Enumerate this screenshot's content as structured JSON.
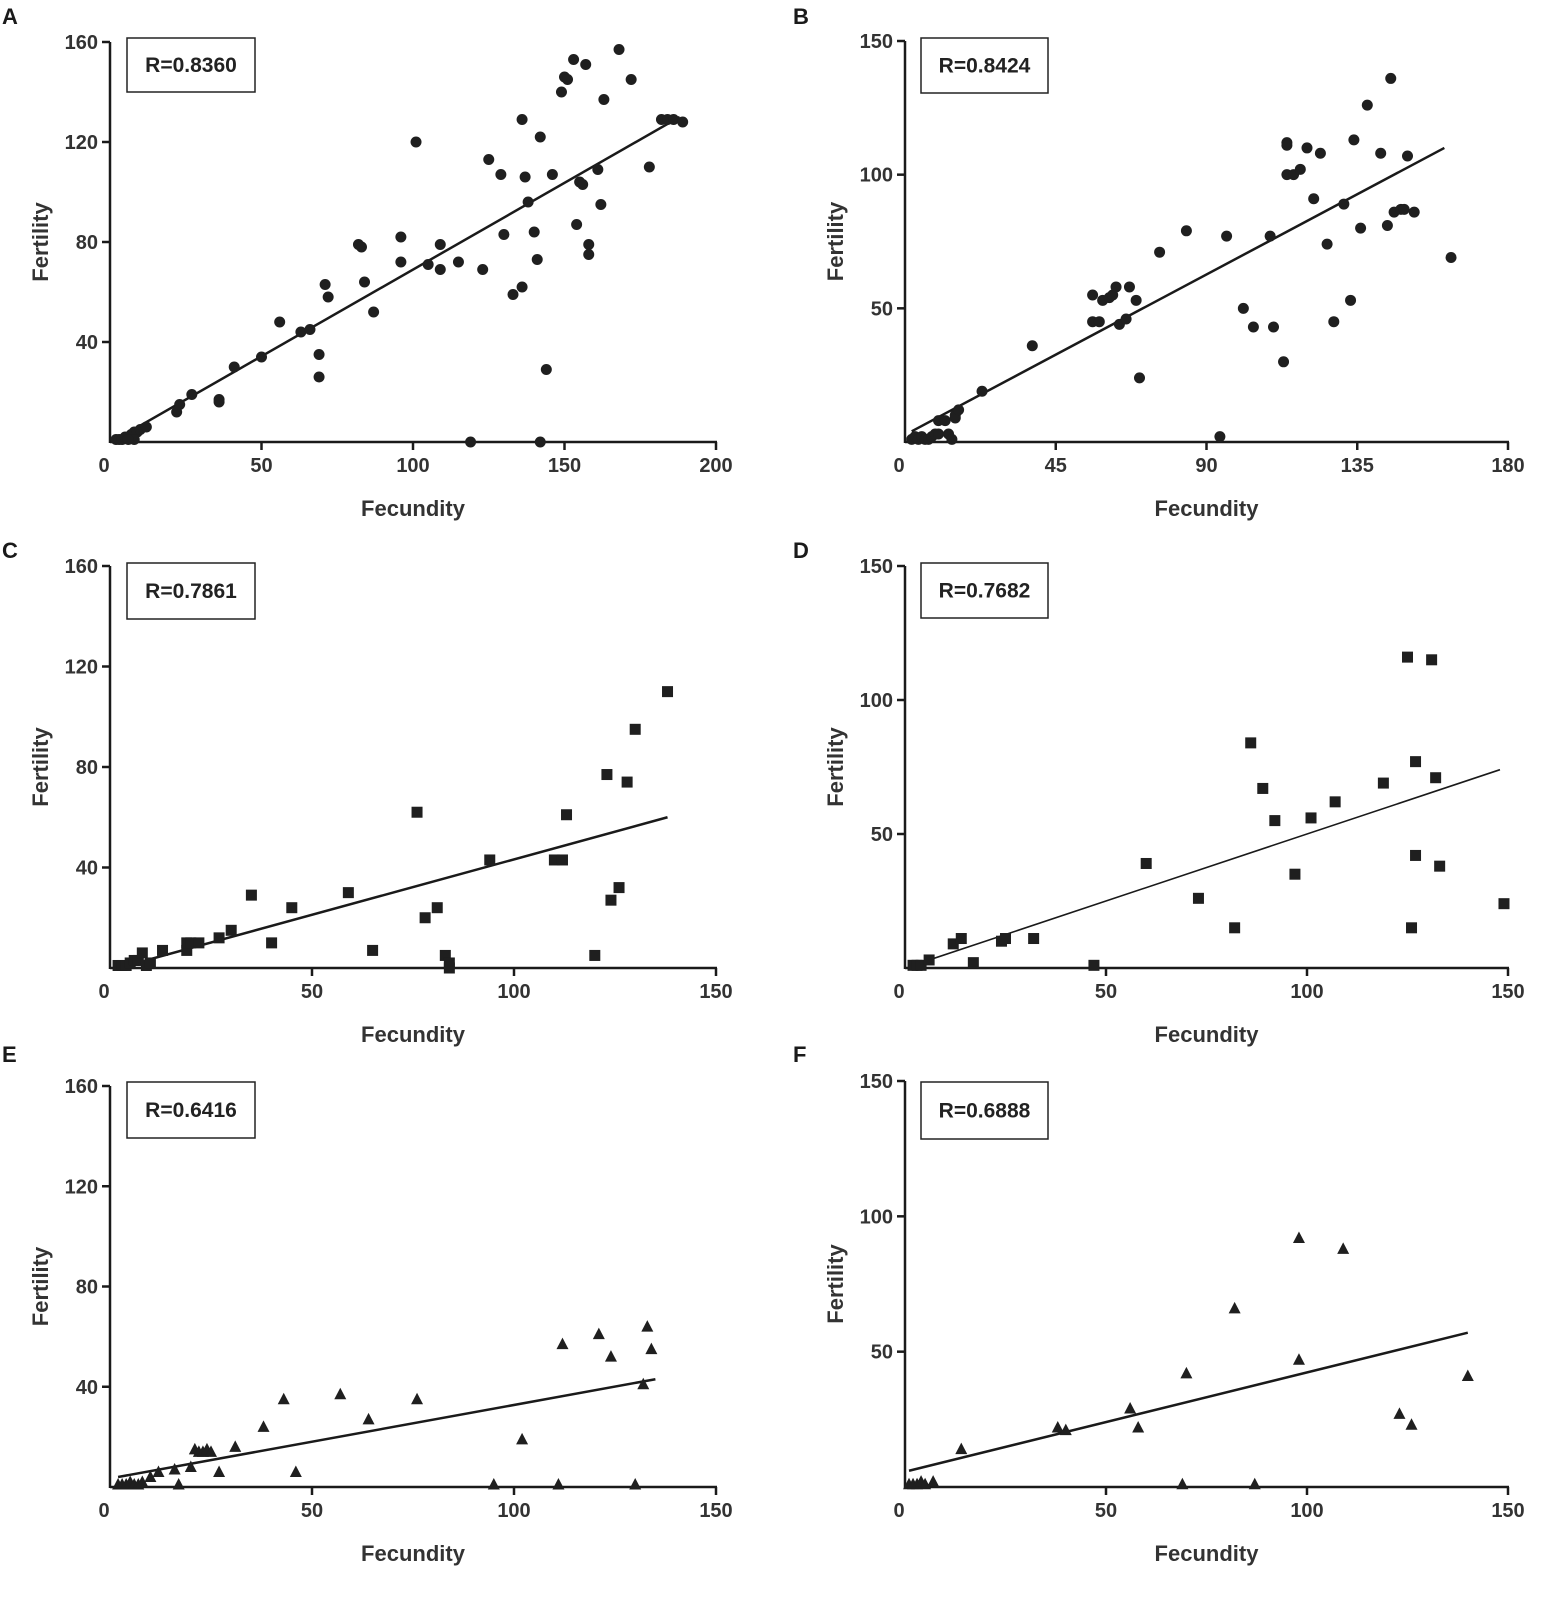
{
  "chart_data": [
    {
      "panel": "A",
      "type": "scatter",
      "marker": "circle",
      "xlabel": "Fecundity",
      "ylabel": "Fertility",
      "annotation": "R=0.8360",
      "xlim": [
        0,
        200
      ],
      "ylim": [
        0,
        160
      ],
      "xticks": [
        0,
        50,
        100,
        150,
        200
      ],
      "xtick_labels": [
        "0",
        "50",
        "100",
        "150",
        "200"
      ],
      "yticks": [
        40,
        80,
        120,
        160
      ],
      "ytick_labels": [
        "40",
        "80",
        "120",
        "160"
      ],
      "fit": {
        "x": [
          2,
          188
        ],
        "y": [
          1,
          130
        ]
      },
      "x": [
        2,
        3,
        4,
        5,
        6,
        7,
        8,
        9,
        10,
        8,
        6,
        12,
        22,
        23,
        27,
        36,
        36,
        41,
        50,
        56,
        63,
        66,
        69,
        69,
        71,
        72,
        82,
        83,
        84,
        87,
        96,
        96,
        101,
        105,
        109,
        109,
        115,
        123,
        125,
        129,
        130,
        133,
        136,
        136,
        137,
        138,
        140,
        141,
        142,
        142,
        144,
        146,
        149,
        150,
        151,
        153,
        154,
        155,
        156,
        157,
        158,
        158,
        161,
        162,
        163,
        168,
        172,
        178,
        182,
        184,
        186,
        189,
        119
      ],
      "y": [
        1,
        1,
        1,
        2,
        2,
        3,
        4,
        4,
        5,
        1,
        1,
        6,
        12,
        15,
        19,
        16,
        17,
        30,
        34,
        48,
        44,
        45,
        35,
        26,
        63,
        58,
        79,
        78,
        64,
        52,
        82,
        72,
        120,
        71,
        79,
        69,
        72,
        69,
        113,
        107,
        83,
        59,
        62,
        129,
        106,
        96,
        84,
        73,
        122,
        0,
        29,
        107,
        140,
        146,
        145,
        153,
        87,
        104,
        103,
        151,
        75,
        79,
        109,
        95,
        137,
        157,
        145,
        110,
        129,
        129,
        129,
        128,
        0
      ]
    },
    {
      "panel": "B",
      "type": "scatter",
      "marker": "circle",
      "xlabel": "Fecundity",
      "ylabel": "Fertility",
      "annotation": "R=0.8424",
      "xlim": [
        0,
        180
      ],
      "ylim": [
        0,
        150
      ],
      "xticks": [
        0,
        45,
        90,
        135,
        180
      ],
      "xtick_labels": [
        "0",
        "45",
        "90",
        "135",
        "180"
      ],
      "yticks": [
        50,
        100,
        150
      ],
      "ytick_labels": [
        "50",
        "100",
        "150"
      ],
      "fit": {
        "x": [
          2,
          161
        ],
        "y": [
          4,
          110
        ]
      },
      "x": [
        2,
        3,
        4,
        5,
        6,
        7,
        8,
        9,
        10,
        10,
        12,
        13,
        14,
        15,
        15,
        16,
        23,
        38,
        56,
        56,
        58,
        59,
        61,
        62,
        63,
        64,
        66,
        67,
        69,
        70,
        76,
        84,
        94,
        96,
        101,
        104,
        109,
        110,
        113,
        114,
        114,
        114,
        116,
        118,
        120,
        122,
        124,
        126,
        128,
        131,
        133,
        134,
        136,
        138,
        142,
        144,
        145,
        146,
        148,
        149,
        150,
        152,
        163
      ],
      "y": [
        1,
        2,
        1,
        2,
        1,
        1,
        2,
        3,
        8,
        3,
        8,
        3,
        1,
        9,
        10,
        12,
        19,
        36,
        55,
        45,
        45,
        53,
        54,
        55,
        58,
        44,
        46,
        58,
        53,
        24,
        71,
        79,
        2,
        77,
        50,
        43,
        77,
        43,
        30,
        100,
        112,
        111,
        100,
        102,
        110,
        91,
        108,
        74,
        45,
        89,
        53,
        113,
        80,
        126,
        108,
        81,
        136,
        86,
        87,
        87,
        107,
        86,
        69
      ]
    },
    {
      "panel": "C",
      "type": "scatter",
      "marker": "square",
      "xlabel": "Fecundity",
      "ylabel": "Fertility",
      "annotation": "R=0.7861",
      "xlim": [
        0,
        150
      ],
      "ylim": [
        0,
        160
      ],
      "xticks": [
        0,
        50,
        100,
        150
      ],
      "xtick_labels": [
        "0",
        "50",
        "100",
        "150"
      ],
      "yticks": [
        40,
        80,
        120,
        160
      ],
      "ytick_labels": [
        "40",
        "80",
        "120",
        "160"
      ],
      "fit": {
        "x": [
          2,
          138
        ],
        "y": [
          0,
          60
        ]
      },
      "x": [
        2,
        3,
        4,
        5,
        6,
        7,
        8,
        9,
        10,
        13,
        19,
        19,
        20,
        22,
        27,
        30,
        35,
        40,
        45,
        59,
        65,
        76,
        78,
        81,
        83,
        84,
        84,
        94,
        110,
        112,
        113,
        120,
        123,
        124,
        126,
        128,
        130,
        138
      ],
      "y": [
        1,
        1,
        1,
        2,
        3,
        3,
        6,
        1,
        2,
        7,
        7,
        10,
        10,
        10,
        12,
        15,
        29,
        10,
        24,
        30,
        7,
        62,
        20,
        24,
        5,
        2,
        0,
        43,
        43,
        43,
        61,
        5,
        77,
        27,
        32,
        74,
        95,
        110
      ]
    },
    {
      "panel": "D",
      "type": "scatter",
      "marker": "square",
      "xlabel": "Fecundity",
      "ylabel": "Fertility",
      "annotation": "R=0.7682",
      "xlim": [
        0,
        150
      ],
      "ylim": [
        0,
        150
      ],
      "xticks": [
        0,
        50,
        100,
        150
      ],
      "xtick_labels": [
        "0",
        "50",
        "100",
        "150"
      ],
      "yticks": [
        50,
        100,
        150
      ],
      "ytick_labels": [
        "50",
        "100",
        "150"
      ],
      "fit": {
        "x": [
          2,
          148
        ],
        "y": [
          1,
          74
        ]
      },
      "x": [
        2,
        3,
        4,
        6,
        12,
        14,
        17,
        24,
        25,
        32,
        47,
        60,
        73,
        82,
        86,
        89,
        92,
        97,
        101,
        107,
        119,
        125,
        126,
        127,
        127,
        131,
        132,
        133,
        149
      ],
      "y": [
        1,
        1,
        1,
        3,
        9,
        11,
        2,
        10,
        11,
        11,
        1,
        39,
        26,
        15,
        84,
        67,
        55,
        35,
        56,
        62,
        69,
        116,
        15,
        77,
        42,
        115,
        71,
        38,
        24
      ]
    },
    {
      "panel": "E",
      "type": "scatter",
      "marker": "triangle",
      "xlabel": "Fecundity",
      "ylabel": "Fertility",
      "annotation": "R=0.6416",
      "xlim": [
        0,
        150
      ],
      "ylim": [
        0,
        160
      ],
      "xticks": [
        0,
        50,
        100,
        150
      ],
      "xtick_labels": [
        "0",
        "50",
        "100",
        "150"
      ],
      "yticks": [
        40,
        80,
        120,
        160
      ],
      "ytick_labels": [
        "40",
        "80",
        "120",
        "160"
      ],
      "fit": {
        "x": [
          2,
          135
        ],
        "y": [
          4,
          43
        ]
      },
      "x": [
        2,
        3,
        4,
        5,
        6,
        7,
        8,
        10,
        12,
        16,
        17,
        20,
        21,
        22,
        23,
        24,
        25,
        27,
        31,
        38,
        43,
        46,
        57,
        64,
        76,
        95,
        102,
        111,
        112,
        121,
        124,
        130,
        132,
        133,
        134
      ],
      "y": [
        1,
        1,
        1,
        2,
        1,
        1,
        2,
        4,
        6,
        7,
        1,
        8,
        15,
        14,
        14,
        15,
        14,
        6,
        16,
        24,
        35,
        6,
        37,
        27,
        35,
        1,
        19,
        1,
        57,
        61,
        52,
        1,
        41,
        64,
        55
      ]
    },
    {
      "panel": "F",
      "type": "scatter",
      "marker": "triangle",
      "xlabel": "Fecundity",
      "ylabel": "Fertility",
      "annotation": "R=0.6888",
      "xlim": [
        0,
        150
      ],
      "ylim": [
        0,
        150
      ],
      "xticks": [
        0,
        50,
        100,
        150
      ],
      "xtick_labels": [
        "0",
        "50",
        "100",
        "150"
      ],
      "yticks": [
        50,
        100,
        150
      ],
      "ytick_labels": [
        "50",
        "100",
        "150"
      ],
      "fit": {
        "x": [
          1,
          140
        ],
        "y": [
          6,
          57
        ]
      },
      "x": [
        1,
        2,
        3,
        4,
        5,
        7,
        14,
        38,
        40,
        56,
        58,
        69,
        70,
        82,
        87,
        98,
        98,
        109,
        123,
        126,
        140
      ],
      "y": [
        1,
        1,
        1,
        2,
        1,
        2,
        14,
        22,
        21,
        29,
        22,
        1,
        42,
        66,
        1,
        92,
        47,
        88,
        27,
        23,
        41
      ]
    }
  ]
}
